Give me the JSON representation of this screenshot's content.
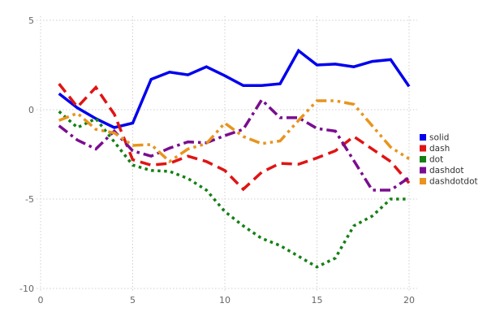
{
  "chart_data": {
    "type": "line",
    "title": "",
    "xlabel": "",
    "ylabel": "",
    "xlim": [
      0,
      20
    ],
    "ylim": [
      -10,
      5
    ],
    "xticks": [
      0,
      5,
      10,
      15,
      20
    ],
    "yticks": [
      5,
      0,
      -5,
      -10
    ],
    "grid": true,
    "grid_style": "dotted",
    "legend_position": "right",
    "x": [
      1,
      2,
      3,
      4,
      5,
      6,
      7,
      8,
      9,
      10,
      11,
      12,
      13,
      14,
      15,
      16,
      17,
      18,
      19,
      20
    ],
    "series": [
      {
        "name": "solid",
        "color": "#0000ee",
        "linestyle": "solid",
        "values": [
          0.9,
          0.1,
          -0.5,
          -1.0,
          -0.75,
          1.7,
          2.1,
          1.95,
          2.4,
          1.9,
          1.35,
          1.35,
          1.45,
          3.3,
          2.5,
          2.55,
          2.4,
          2.7,
          2.8,
          1.3
        ]
      },
      {
        "name": "dash",
        "color": "#e01414",
        "linestyle": "dash",
        "values": [
          1.45,
          0.15,
          1.25,
          -0.25,
          -2.8,
          -3.1,
          -3.0,
          -2.6,
          -2.9,
          -3.4,
          -4.45,
          -3.5,
          -3.0,
          -3.05,
          -2.7,
          -2.3,
          -1.5,
          -2.2,
          -2.9,
          -4.1
        ]
      },
      {
        "name": "dot",
        "color": "#148014",
        "linestyle": "dot",
        "values": [
          -0.1,
          -1.0,
          -0.5,
          -1.8,
          -3.1,
          -3.4,
          -3.45,
          -3.85,
          -4.5,
          -5.7,
          -6.5,
          -7.2,
          -7.6,
          -8.2,
          -8.8,
          -8.3,
          -6.5,
          -5.95,
          -5.0,
          -5.0
        ]
      },
      {
        "name": "dashdot",
        "color": "#7a0d8f",
        "linestyle": "dashdot",
        "values": [
          -0.9,
          -1.7,
          -2.2,
          -1.2,
          -2.3,
          -2.6,
          -2.15,
          -1.8,
          -1.85,
          -1.45,
          -1.1,
          0.55,
          -0.45,
          -0.45,
          -1.05,
          -1.2,
          -2.85,
          -4.5,
          -4.5,
          -3.8
        ]
      },
      {
        "name": "dashdotdot",
        "color": "#e8941e",
        "linestyle": "dashdotdot",
        "values": [
          -0.6,
          -0.2,
          -1.1,
          -1.3,
          -2.0,
          -1.95,
          -2.9,
          -2.2,
          -1.9,
          -0.75,
          -1.5,
          -1.9,
          -1.75,
          -0.6,
          0.5,
          0.5,
          0.3,
          -0.9,
          -2.1,
          -2.75
        ]
      }
    ],
    "style": {
      "grid_color": "#cfcfcf",
      "tick_label_color": "#666666",
      "legend_text_color": "#333333",
      "background": "#ffffff"
    }
  }
}
